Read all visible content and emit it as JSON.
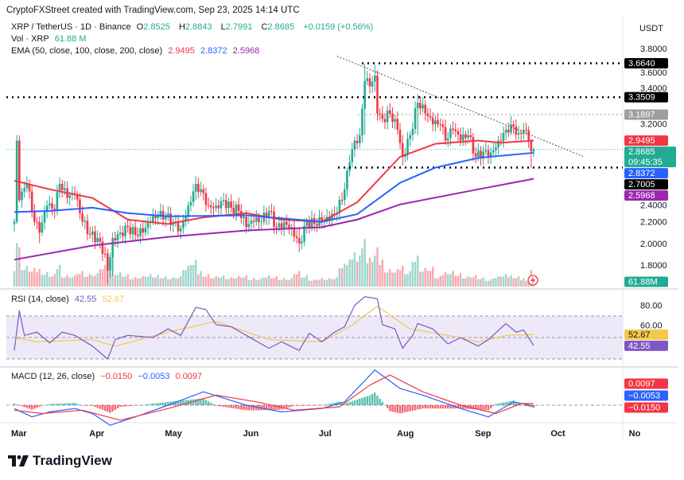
{
  "credit": "CryptoFXStreet created with TradingView.com, Sep 23, 2025 14:14 UTC",
  "symbol": {
    "title": "XRP / TetherUS · 1D · Binance",
    "open_label": "O",
    "open": "2.8525",
    "high_label": "H",
    "high": "2.8843",
    "low_label": "L",
    "low": "2.7991",
    "close_label": "C",
    "close": "2.8685",
    "change": "+0.0159 (+0.56%)"
  },
  "volume_legend": {
    "label": "Vol · XRP",
    "value": "61.88 M"
  },
  "ema_legend": {
    "label": "EMA (50, close, 100, close, 200, close)",
    "ema50": "2.9495",
    "ema100": "2.8372",
    "ema200": "2.5968"
  },
  "rsi_legend": {
    "label": "RSI (14, close)",
    "rsi": "42.55",
    "ma": "52.67"
  },
  "macd_legend": {
    "label": "MACD (12, 26, close)",
    "hist": "−0.0150",
    "macd": "−0.0053",
    "signal": "0.0097"
  },
  "price_axis": {
    "unit": "USDT",
    "ticks": [
      "3.8000",
      "3.6000",
      "3.4000",
      "3.2000",
      "2.4000",
      "2.2000",
      "2.0000",
      "1.8000"
    ]
  },
  "price_badges": [
    {
      "value": "3.6640",
      "price": 3.664,
      "color": "#000000"
    },
    {
      "value": "3.3509",
      "price": 3.3509,
      "color": "#000000"
    },
    {
      "value": "3.1897",
      "price": 3.1897,
      "color": "#9e9e9e"
    },
    {
      "value": "2.9495",
      "price": 2.9495,
      "color": "#f23645"
    },
    {
      "value": "2.8685",
      "sub": "09:45:35",
      "price": 2.8685,
      "color": "#22ab94"
    },
    {
      "value": "2.8372",
      "price": 2.8372,
      "color": "#2962ff"
    },
    {
      "value": "2.7005",
      "price": 2.7005,
      "color": "#000000"
    },
    {
      "value": "2.5968",
      "price": 2.5968,
      "color": "#9c27b0"
    }
  ],
  "volume_badge": {
    "value": "61.88M",
    "color": "#22ab94"
  },
  "rsi_axis": {
    "ticks": [
      "80.00",
      "60.00"
    ],
    "badges": [
      {
        "value": "52.67",
        "rsi": 52.67,
        "color": "#f2c94c",
        "text": "#131722"
      },
      {
        "value": "42.55",
        "rsi": 42.55,
        "color": "#7e57c2",
        "text": "#ffffff"
      }
    ]
  },
  "macd_axis": {
    "badges": [
      {
        "value": "0.0097",
        "color": "#f23645"
      },
      {
        "value": "−0.0053",
        "color": "#2962ff"
      },
      {
        "value": "−0.0150",
        "color": "#f23645"
      }
    ]
  },
  "time_axis": [
    {
      "label": "Mar",
      "date": "2025-03-01"
    },
    {
      "label": "Apr",
      "date": "2025-04-01"
    },
    {
      "label": "May",
      "date": "2025-05-01"
    },
    {
      "label": "Jun",
      "date": "2025-06-01"
    },
    {
      "label": "Jul",
      "date": "2025-07-01"
    },
    {
      "label": "Aug",
      "date": "2025-08-01"
    },
    {
      "label": "Sep",
      "date": "2025-09-01"
    },
    {
      "label": "Oct",
      "date": "2025-10-01"
    },
    {
      "label": "No",
      "date": "2025-11-01"
    }
  ],
  "logo": "TradingView",
  "chart_data": {
    "type": "candlestick",
    "title": "XRP / TetherUS · 1D · Binance",
    "ylim": [
      1.6,
      3.9
    ],
    "grid": false,
    "colors": {
      "up": "#22ab94",
      "down": "#f23645",
      "ema50": "#f23645",
      "ema100": "#2962ff",
      "ema200": "#9c27b0",
      "rsi": "#7e57c2",
      "rsi_ma": "#f2c94c"
    },
    "candles_columns": [
      "date",
      "close",
      "volume_M",
      "high",
      "low"
    ],
    "candles": [
      [
        "2025-03-01",
        2.2,
        150
      ],
      [
        "2025-03-02",
        2.95,
        420,
        3.0,
        2.18
      ],
      [
        "2025-03-03",
        2.4,
        380,
        3.0,
        2.38
      ],
      [
        "2025-03-06",
        2.55,
        200
      ],
      [
        "2025-03-09",
        2.2,
        180
      ],
      [
        "2025-03-11",
        2.1,
        170,
        2.25,
        2.0
      ],
      [
        "2025-03-14",
        2.35,
        140
      ],
      [
        "2025-03-17",
        2.3,
        120
      ],
      [
        "2025-03-19",
        2.55,
        210
      ],
      [
        "2025-03-22",
        2.42,
        110
      ],
      [
        "2025-03-25",
        2.45,
        110
      ],
      [
        "2025-03-28",
        2.2,
        150
      ],
      [
        "2025-03-31",
        2.08,
        120
      ],
      [
        "2025-04-03",
        2.05,
        130
      ],
      [
        "2025-04-06",
        1.9,
        210
      ],
      [
        "2025-04-07",
        1.75,
        330,
        1.95,
        1.62
      ],
      [
        "2025-04-09",
        2.05,
        300,
        2.1,
        1.7
      ],
      [
        "2025-04-12",
        2.1,
        140
      ],
      [
        "2025-04-15",
        2.15,
        120
      ],
      [
        "2025-04-18",
        2.08,
        90
      ],
      [
        "2025-04-21",
        2.1,
        100
      ],
      [
        "2025-04-24",
        2.2,
        120
      ],
      [
        "2025-04-27",
        2.25,
        110
      ],
      [
        "2025-04-30",
        2.25,
        100
      ],
      [
        "2025-05-03",
        2.2,
        90
      ],
      [
        "2025-05-06",
        2.14,
        100
      ],
      [
        "2025-05-09",
        2.35,
        200
      ],
      [
        "2025-05-12",
        2.55,
        260,
        2.62,
        2.4
      ],
      [
        "2025-05-14",
        2.5,
        150
      ],
      [
        "2025-05-17",
        2.35,
        120
      ],
      [
        "2025-05-20",
        2.35,
        100
      ],
      [
        "2025-05-23",
        2.4,
        110
      ],
      [
        "2025-05-26",
        2.33,
        90
      ],
      [
        "2025-05-29",
        2.3,
        100
      ],
      [
        "2025-06-01",
        2.15,
        110
      ],
      [
        "2025-06-04",
        2.2,
        80
      ],
      [
        "2025-06-07",
        2.2,
        80
      ],
      [
        "2025-06-10",
        2.3,
        110
      ],
      [
        "2025-06-13",
        2.15,
        100
      ],
      [
        "2025-06-16",
        2.2,
        80
      ],
      [
        "2025-06-19",
        2.15,
        80
      ],
      [
        "2025-06-22",
        2.0,
        150,
        2.15,
        1.92
      ],
      [
        "2025-06-25",
        2.2,
        110
      ],
      [
        "2025-06-28",
        2.18,
        70
      ],
      [
        "2025-07-01",
        2.2,
        80
      ],
      [
        "2025-07-04",
        2.22,
        80
      ],
      [
        "2025-07-07",
        2.28,
        90
      ],
      [
        "2025-07-10",
        2.5,
        220
      ],
      [
        "2025-07-12",
        2.75,
        260
      ],
      [
        "2025-07-14",
        2.95,
        330
      ],
      [
        "2025-07-16",
        3.0,
        300
      ],
      [
        "2025-07-18",
        3.5,
        460,
        3.66,
        3.0
      ],
      [
        "2025-07-20",
        3.45,
        280
      ],
      [
        "2025-07-22",
        3.55,
        300,
        3.65,
        3.4
      ],
      [
        "2025-07-23",
        3.2,
        380
      ],
      [
        "2025-07-25",
        3.15,
        260
      ],
      [
        "2025-07-28",
        3.2,
        170
      ],
      [
        "2025-07-31",
        3.05,
        170
      ],
      [
        "2025-08-02",
        2.8,
        200,
        3.0,
        2.72
      ],
      [
        "2025-08-05",
        3.0,
        150
      ],
      [
        "2025-08-08",
        3.3,
        300,
        3.38,
        3.0
      ],
      [
        "2025-08-11",
        3.2,
        180
      ],
      [
        "2025-08-14",
        3.1,
        190
      ],
      [
        "2025-08-17",
        3.1,
        100
      ],
      [
        "2025-08-19",
        2.95,
        140
      ],
      [
        "2025-08-22",
        3.05,
        150
      ],
      [
        "2025-08-25",
        2.95,
        130
      ],
      [
        "2025-08-28",
        3.0,
        100
      ],
      [
        "2025-08-31",
        2.8,
        110
      ],
      [
        "2025-09-03",
        2.85,
        90
      ],
      [
        "2025-09-06",
        2.84,
        70
      ],
      [
        "2025-09-09",
        2.95,
        100
      ],
      [
        "2025-09-12",
        3.05,
        120
      ],
      [
        "2025-09-14",
        3.1,
        110,
        3.18,
        3.0
      ],
      [
        "2025-09-17",
        3.02,
        100
      ],
      [
        "2025-09-19",
        3.05,
        80
      ],
      [
        "2025-09-21",
        2.95,
        70
      ],
      [
        "2025-09-22",
        2.85,
        160,
        2.96,
        2.7
      ],
      [
        "2025-09-23",
        2.8685,
        61.88,
        2.8843,
        2.7991
      ]
    ],
    "ema": [
      {
        "name": "EMA 50",
        "points": [
          [
            "2025-03-01",
            2.58
          ],
          [
            "2025-03-15",
            2.5
          ],
          [
            "2025-04-01",
            2.42
          ],
          [
            "2025-04-15",
            2.22
          ],
          [
            "2025-05-01",
            2.18
          ],
          [
            "2025-05-15",
            2.24
          ],
          [
            "2025-06-01",
            2.28
          ],
          [
            "2025-06-15",
            2.22
          ],
          [
            "2025-07-01",
            2.2
          ],
          [
            "2025-07-15",
            2.38
          ],
          [
            "2025-08-01",
            2.8
          ],
          [
            "2025-08-15",
            2.92
          ],
          [
            "2025-09-01",
            2.95
          ],
          [
            "2025-09-10",
            2.93
          ],
          [
            "2025-09-23",
            2.9495
          ]
        ]
      },
      {
        "name": "EMA 100",
        "points": [
          [
            "2025-03-01",
            2.29
          ],
          [
            "2025-03-15",
            2.3
          ],
          [
            "2025-04-01",
            2.33
          ],
          [
            "2025-04-15",
            2.28
          ],
          [
            "2025-05-01",
            2.25
          ],
          [
            "2025-06-01",
            2.26
          ],
          [
            "2025-07-01",
            2.2
          ],
          [
            "2025-07-15",
            2.27
          ],
          [
            "2025-08-01",
            2.56
          ],
          [
            "2025-08-15",
            2.7
          ],
          [
            "2025-09-01",
            2.79
          ],
          [
            "2025-09-23",
            2.8372
          ]
        ]
      },
      {
        "name": "EMA 200",
        "points": [
          [
            "2025-03-01",
            1.85
          ],
          [
            "2025-04-01",
            1.98
          ],
          [
            "2025-05-01",
            2.06
          ],
          [
            "2025-06-01",
            2.12
          ],
          [
            "2025-07-01",
            2.15
          ],
          [
            "2025-07-15",
            2.22
          ],
          [
            "2025-08-01",
            2.36
          ],
          [
            "2025-09-01",
            2.5
          ],
          [
            "2025-09-23",
            2.5968
          ]
        ]
      }
    ],
    "levels": [
      3.664,
      3.3509,
      3.1897,
      2.7005
    ],
    "trendline": [
      [
        "2025-07-07",
        3.73
      ],
      [
        "2025-10-13",
        2.8
      ]
    ],
    "rsi": {
      "ylim": [
        20,
        100
      ],
      "bands": [
        30,
        50,
        70
      ],
      "values": [
        [
          "2025-03-01",
          38
        ],
        [
          "2025-03-03",
          75
        ],
        [
          "2025-03-05",
          52
        ],
        [
          "2025-03-10",
          55
        ],
        [
          "2025-03-15",
          45
        ],
        [
          "2025-03-20",
          55
        ],
        [
          "2025-03-25",
          52
        ],
        [
          "2025-04-01",
          42
        ],
        [
          "2025-04-07",
          30
        ],
        [
          "2025-04-10",
          48
        ],
        [
          "2025-04-15",
          52
        ],
        [
          "2025-04-25",
          50
        ],
        [
          "2025-05-01",
          58
        ],
        [
          "2025-05-06",
          52
        ],
        [
          "2025-05-12",
          78
        ],
        [
          "2025-05-16",
          76
        ],
        [
          "2025-05-20",
          62
        ],
        [
          "2025-05-26",
          60
        ],
        [
          "2025-06-01",
          52
        ],
        [
          "2025-06-10",
          40
        ],
        [
          "2025-06-15",
          46
        ],
        [
          "2025-06-22",
          38
        ],
        [
          "2025-06-26",
          54
        ],
        [
          "2025-07-01",
          46
        ],
        [
          "2025-07-06",
          55
        ],
        [
          "2025-07-10",
          60
        ],
        [
          "2025-07-14",
          80
        ],
        [
          "2025-07-18",
          88
        ],
        [
          "2025-07-23",
          86
        ],
        [
          "2025-07-25",
          62
        ],
        [
          "2025-07-30",
          58
        ],
        [
          "2025-08-02",
          40
        ],
        [
          "2025-08-06",
          52
        ],
        [
          "2025-08-08",
          63
        ],
        [
          "2025-08-14",
          58
        ],
        [
          "2025-08-20",
          44
        ],
        [
          "2025-08-25",
          50
        ],
        [
          "2025-09-01",
          42
        ],
        [
          "2025-09-05",
          48
        ],
        [
          "2025-09-12",
          63
        ],
        [
          "2025-09-16",
          55
        ],
        [
          "2025-09-19",
          57
        ],
        [
          "2025-09-23",
          42.55
        ]
      ],
      "ma": [
        [
          "2025-03-01",
          50
        ],
        [
          "2025-03-10",
          46
        ],
        [
          "2025-04-01",
          48
        ],
        [
          "2025-04-10",
          42
        ],
        [
          "2025-05-01",
          55
        ],
        [
          "2025-05-20",
          65
        ],
        [
          "2025-06-10",
          48
        ],
        [
          "2025-07-01",
          46
        ],
        [
          "2025-07-12",
          60
        ],
        [
          "2025-07-23",
          79
        ],
        [
          "2025-08-05",
          58
        ],
        [
          "2025-08-20",
          52
        ],
        [
          "2025-09-01",
          46
        ],
        [
          "2025-09-12",
          52
        ],
        [
          "2025-09-23",
          52.67
        ]
      ]
    },
    "macd": {
      "macd": [
        [
          "2025-03-01",
          -0.02
        ],
        [
          "2025-03-08",
          -0.07
        ],
        [
          "2025-03-15",
          -0.04
        ],
        [
          "2025-03-25",
          -0.02
        ],
        [
          "2025-04-01",
          -0.05
        ],
        [
          "2025-04-08",
          -0.12
        ],
        [
          "2025-04-20",
          -0.06
        ],
        [
          "2025-05-01",
          0.0
        ],
        [
          "2025-05-15",
          0.08
        ],
        [
          "2025-06-01",
          0.0
        ],
        [
          "2025-06-15",
          -0.04
        ],
        [
          "2025-07-01",
          -0.02
        ],
        [
          "2025-07-10",
          0.02
        ],
        [
          "2025-07-22",
          0.21
        ],
        [
          "2025-08-01",
          0.1
        ],
        [
          "2025-08-10",
          0.06
        ],
        [
          "2025-08-25",
          -0.02
        ],
        [
          "2025-09-05",
          -0.07
        ],
        [
          "2025-09-15",
          0.02
        ],
        [
          "2025-09-23",
          -0.0053
        ]
      ],
      "signal": [
        [
          "2025-03-01",
          -0.03
        ],
        [
          "2025-03-12",
          -0.05
        ],
        [
          "2025-03-28",
          -0.03
        ],
        [
          "2025-04-12",
          -0.09
        ],
        [
          "2025-05-01",
          -0.02
        ],
        [
          "2025-05-20",
          0.06
        ],
        [
          "2025-06-05",
          0.02
        ],
        [
          "2025-06-20",
          -0.03
        ],
        [
          "2025-07-08",
          -0.01
        ],
        [
          "2025-07-20",
          0.12
        ],
        [
          "2025-07-28",
          0.18
        ],
        [
          "2025-08-10",
          0.08
        ],
        [
          "2025-08-25",
          0.0
        ],
        [
          "2025-09-08",
          -0.05
        ],
        [
          "2025-09-18",
          0.01
        ],
        [
          "2025-09-23",
          0.0097
        ]
      ]
    }
  }
}
